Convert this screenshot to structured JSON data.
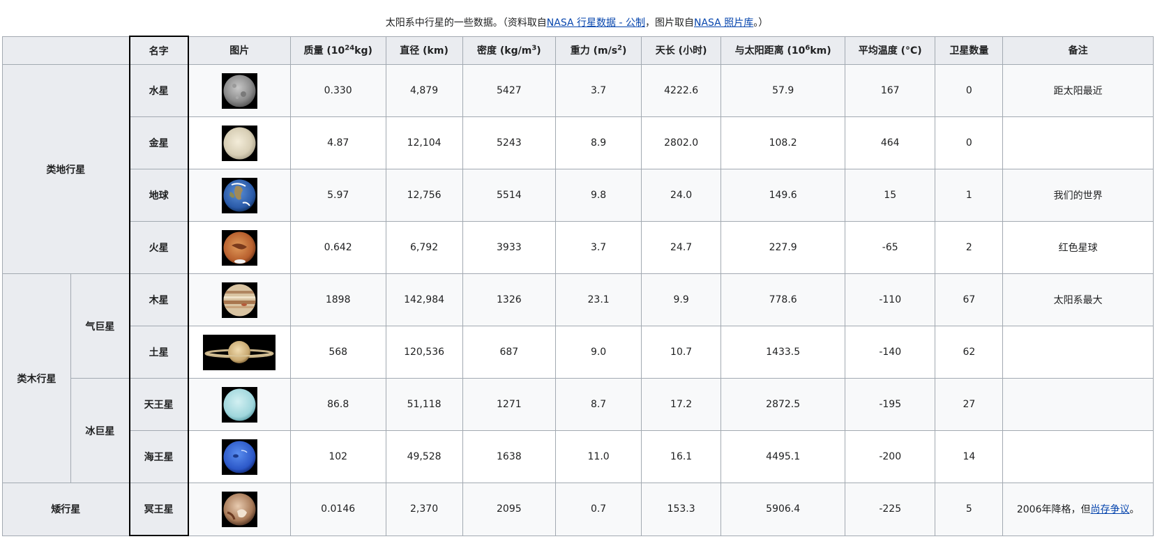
{
  "caption": {
    "prefix": "太阳系中行星的一些数据。（资料取自",
    "link1": "NASA 行星数据 - 公制",
    "middle": "，图片取自",
    "link2": "NASA 照片库",
    "suffix": "。）"
  },
  "headers": {
    "name": "名字",
    "image": "图片",
    "mass_prefix": "质量 (10",
    "mass_sup": "24",
    "mass_suffix": "kg)",
    "diameter": "直径 (km)",
    "density_prefix": "密度 (kg/m",
    "density_sup": "3",
    "density_suffix": ")",
    "gravity_prefix": "重力 (m/s",
    "gravity_sup": "2",
    "gravity_suffix": ")",
    "day": "天长 (小时)",
    "distance_prefix": "与太阳距离 (10",
    "distance_sup": "6",
    "distance_suffix": "km)",
    "temp": "平均温度 (°C)",
    "moons": "卫星数量",
    "notes": "备注"
  },
  "groups": {
    "terrestrial": "类地行星",
    "jovian": "类木行星",
    "gas_giant": "气巨星",
    "ice_giant": "冰巨星",
    "dwarf": "矮行星"
  },
  "rows": [
    {
      "name": "水星",
      "mass": "0.330",
      "diameter": "4,879",
      "density": "5427",
      "gravity": "3.7",
      "day": "4222.6",
      "distance": "57.9",
      "temp": "167",
      "moons": "0",
      "note": "距太阳最近"
    },
    {
      "name": "金星",
      "mass": "4.87",
      "diameter": "12,104",
      "density": "5243",
      "gravity": "8.9",
      "day": "2802.0",
      "distance": "108.2",
      "temp": "464",
      "moons": "0",
      "note": ""
    },
    {
      "name": "地球",
      "mass": "5.97",
      "diameter": "12,756",
      "density": "5514",
      "gravity": "9.8",
      "day": "24.0",
      "distance": "149.6",
      "temp": "15",
      "moons": "1",
      "note": "我们的世界"
    },
    {
      "name": "火星",
      "mass": "0.642",
      "diameter": "6,792",
      "density": "3933",
      "gravity": "3.7",
      "day": "24.7",
      "distance": "227.9",
      "temp": "-65",
      "moons": "2",
      "note": "红色星球"
    },
    {
      "name": "木星",
      "mass": "1898",
      "diameter": "142,984",
      "density": "1326",
      "gravity": "23.1",
      "day": "9.9",
      "distance": "778.6",
      "temp": "-110",
      "moons": "67",
      "note": "太阳系最大"
    },
    {
      "name": "土星",
      "mass": "568",
      "diameter": "120,536",
      "density": "687",
      "gravity": "9.0",
      "day": "10.7",
      "distance": "1433.5",
      "temp": "-140",
      "moons": "62",
      "note": ""
    },
    {
      "name": "天王星",
      "mass": "86.8",
      "diameter": "51,118",
      "density": "1271",
      "gravity": "8.7",
      "day": "17.2",
      "distance": "2872.5",
      "temp": "-195",
      "moons": "27",
      "note": ""
    },
    {
      "name": "海王星",
      "mass": "102",
      "diameter": "49,528",
      "density": "1638",
      "gravity": "11.0",
      "day": "16.1",
      "distance": "4495.1",
      "temp": "-200",
      "moons": "14",
      "note": ""
    },
    {
      "name": "冥王星",
      "mass": "0.0146",
      "diameter": "2,370",
      "density": "2095",
      "gravity": "0.7",
      "day": "153.3",
      "distance": "5906.4",
      "temp": "-225",
      "moons": "5",
      "note_prefix": "2006年降格，但",
      "note_link": "尚存争议",
      "note_suffix": "。"
    }
  ],
  "images": {
    "mercury": "mercury-photo-icon",
    "venus": "venus-photo-icon",
    "earth": "earth-photo-icon",
    "mars": "mars-photo-icon",
    "jupiter": "jupiter-photo-icon",
    "saturn": "saturn-photo-icon",
    "uranus": "uranus-photo-icon",
    "neptune": "neptune-photo-icon",
    "pluto": "pluto-photo-icon"
  },
  "colors": {
    "link": "#0645ad",
    "header_bg": "#eaecf0",
    "border": "#a2a9b1"
  }
}
